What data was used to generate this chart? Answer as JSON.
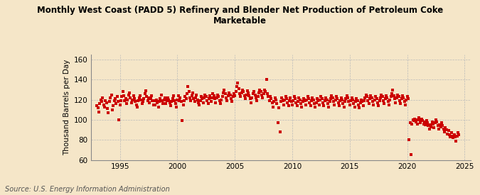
{
  "title": "Monthly West Coast (PADD 5) Refinery and Blender Net Production of Petroleum Coke\nMarketable",
  "ylabel": "Thousand Barrels per Day",
  "source": "Source: U.S. Energy Information Administration",
  "background_color": "#f5e6c8",
  "dot_color": "#cc0000",
  "xlim": [
    1992.5,
    2025.5
  ],
  "ylim": [
    60,
    165
  ],
  "yticks": [
    60,
    80,
    100,
    120,
    140,
    160
  ],
  "xticks": [
    1995,
    2000,
    2005,
    2010,
    2015,
    2020,
    2025
  ],
  "data": [
    [
      1993.0,
      114
    ],
    [
      1993.083,
      112
    ],
    [
      1993.167,
      108
    ],
    [
      1993.25,
      116
    ],
    [
      1993.333,
      120
    ],
    [
      1993.417,
      118
    ],
    [
      1993.5,
      122
    ],
    [
      1993.583,
      115
    ],
    [
      1993.667,
      113
    ],
    [
      1993.75,
      119
    ],
    [
      1993.833,
      117
    ],
    [
      1993.917,
      111
    ],
    [
      1994.0,
      107
    ],
    [
      1994.083,
      118
    ],
    [
      1994.167,
      122
    ],
    [
      1994.25,
      125
    ],
    [
      1994.333,
      110
    ],
    [
      1994.417,
      114
    ],
    [
      1994.5,
      119
    ],
    [
      1994.583,
      121
    ],
    [
      1994.667,
      116
    ],
    [
      1994.75,
      123
    ],
    [
      1994.833,
      118
    ],
    [
      1994.917,
      100
    ],
    [
      1995.0,
      115
    ],
    [
      1995.083,
      119
    ],
    [
      1995.167,
      123
    ],
    [
      1995.25,
      128
    ],
    [
      1995.333,
      124
    ],
    [
      1995.417,
      119
    ],
    [
      1995.5,
      121
    ],
    [
      1995.583,
      116
    ],
    [
      1995.667,
      120
    ],
    [
      1995.75,
      125
    ],
    [
      1995.833,
      127
    ],
    [
      1995.917,
      122
    ],
    [
      1996.0,
      117
    ],
    [
      1996.083,
      120
    ],
    [
      1996.167,
      124
    ],
    [
      1996.25,
      121
    ],
    [
      1996.333,
      118
    ],
    [
      1996.417,
      115
    ],
    [
      1996.5,
      113
    ],
    [
      1996.583,
      119
    ],
    [
      1996.667,
      122
    ],
    [
      1996.75,
      124
    ],
    [
      1996.833,
      120
    ],
    [
      1996.917,
      116
    ],
    [
      1997.0,
      118
    ],
    [
      1997.083,
      121
    ],
    [
      1997.167,
      126
    ],
    [
      1997.25,
      129
    ],
    [
      1997.333,
      123
    ],
    [
      1997.417,
      119
    ],
    [
      1997.5,
      122
    ],
    [
      1997.583,
      117
    ],
    [
      1997.667,
      121
    ],
    [
      1997.75,
      124
    ],
    [
      1997.833,
      119
    ],
    [
      1997.917,
      115
    ],
    [
      1998.0,
      119
    ],
    [
      1998.083,
      115
    ],
    [
      1998.167,
      120
    ],
    [
      1998.25,
      117
    ],
    [
      1998.333,
      113
    ],
    [
      1998.417,
      118
    ],
    [
      1998.5,
      121
    ],
    [
      1998.583,
      125
    ],
    [
      1998.667,
      119
    ],
    [
      1998.75,
      116
    ],
    [
      1998.833,
      120
    ],
    [
      1998.917,
      122
    ],
    [
      1999.0,
      116
    ],
    [
      1999.083,
      119
    ],
    [
      1999.167,
      122
    ],
    [
      1999.25,
      120
    ],
    [
      1999.333,
      117
    ],
    [
      1999.417,
      114
    ],
    [
      1999.5,
      118
    ],
    [
      1999.583,
      121
    ],
    [
      1999.667,
      124
    ],
    [
      1999.75,
      119
    ],
    [
      1999.833,
      116
    ],
    [
      1999.917,
      113
    ],
    [
      2000.0,
      120
    ],
    [
      2000.083,
      124
    ],
    [
      2000.167,
      119
    ],
    [
      2000.25,
      122
    ],
    [
      2000.333,
      118
    ],
    [
      2000.417,
      99
    ],
    [
      2000.5,
      115
    ],
    [
      2000.583,
      119
    ],
    [
      2000.667,
      123
    ],
    [
      2000.75,
      121
    ],
    [
      2000.833,
      126
    ],
    [
      2000.917,
      133
    ],
    [
      2001.0,
      128
    ],
    [
      2001.083,
      122
    ],
    [
      2001.167,
      119
    ],
    [
      2001.25,
      124
    ],
    [
      2001.333,
      127
    ],
    [
      2001.417,
      121
    ],
    [
      2001.5,
      118
    ],
    [
      2001.583,
      122
    ],
    [
      2001.667,
      125
    ],
    [
      2001.75,
      120
    ],
    [
      2001.833,
      117
    ],
    [
      2001.917,
      115
    ],
    [
      2002.0,
      119
    ],
    [
      2002.083,
      123
    ],
    [
      2002.167,
      121
    ],
    [
      2002.25,
      117
    ],
    [
      2002.333,
      122
    ],
    [
      2002.417,
      125
    ],
    [
      2002.5,
      123
    ],
    [
      2002.583,
      119
    ],
    [
      2002.667,
      116
    ],
    [
      2002.75,
      121
    ],
    [
      2002.833,
      124
    ],
    [
      2002.917,
      118
    ],
    [
      2003.0,
      122
    ],
    [
      2003.083,
      126
    ],
    [
      2003.167,
      124
    ],
    [
      2003.25,
      121
    ],
    [
      2003.333,
      117
    ],
    [
      2003.417,
      122
    ],
    [
      2003.5,
      125
    ],
    [
      2003.583,
      123
    ],
    [
      2003.667,
      119
    ],
    [
      2003.75,
      116
    ],
    [
      2003.833,
      120
    ],
    [
      2003.917,
      123
    ],
    [
      2004.0,
      127
    ],
    [
      2004.083,
      130
    ],
    [
      2004.167,
      126
    ],
    [
      2004.25,
      122
    ],
    [
      2004.333,
      119
    ],
    [
      2004.417,
      124
    ],
    [
      2004.5,
      127
    ],
    [
      2004.583,
      125
    ],
    [
      2004.667,
      121
    ],
    [
      2004.75,
      118
    ],
    [
      2004.833,
      123
    ],
    [
      2004.917,
      126
    ],
    [
      2005.0,
      124
    ],
    [
      2005.083,
      128
    ],
    [
      2005.167,
      133
    ],
    [
      2005.25,
      137
    ],
    [
      2005.333,
      131
    ],
    [
      2005.417,
      126
    ],
    [
      2005.5,
      123
    ],
    [
      2005.583,
      127
    ],
    [
      2005.667,
      130
    ],
    [
      2005.75,
      128
    ],
    [
      2005.833,
      124
    ],
    [
      2005.917,
      121
    ],
    [
      2006.0,
      125
    ],
    [
      2006.083,
      129
    ],
    [
      2006.167,
      127
    ],
    [
      2006.25,
      124
    ],
    [
      2006.333,
      121
    ],
    [
      2006.417,
      117
    ],
    [
      2006.5,
      122
    ],
    [
      2006.583,
      126
    ],
    [
      2006.667,
      128
    ],
    [
      2006.75,
      125
    ],
    [
      2006.833,
      122
    ],
    [
      2006.917,
      119
    ],
    [
      2007.0,
      123
    ],
    [
      2007.083,
      127
    ],
    [
      2007.167,
      130
    ],
    [
      2007.25,
      128
    ],
    [
      2007.333,
      125
    ],
    [
      2007.417,
      122
    ],
    [
      2007.5,
      126
    ],
    [
      2007.583,
      130
    ],
    [
      2007.667,
      128
    ],
    [
      2007.75,
      140
    ],
    [
      2007.833,
      126
    ],
    [
      2007.917,
      123
    ],
    [
      2008.0,
      119
    ],
    [
      2008.083,
      123
    ],
    [
      2008.167,
      121
    ],
    [
      2008.25,
      117
    ],
    [
      2008.333,
      113
    ],
    [
      2008.417,
      118
    ],
    [
      2008.5,
      122
    ],
    [
      2008.583,
      120
    ],
    [
      2008.667,
      116
    ],
    [
      2008.75,
      97
    ],
    [
      2008.833,
      112
    ],
    [
      2008.917,
      88
    ],
    [
      2009.0,
      118
    ],
    [
      2009.083,
      122
    ],
    [
      2009.167,
      119
    ],
    [
      2009.25,
      115
    ],
    [
      2009.333,
      120
    ],
    [
      2009.417,
      123
    ],
    [
      2009.5,
      121
    ],
    [
      2009.583,
      117
    ],
    [
      2009.667,
      114
    ],
    [
      2009.75,
      119
    ],
    [
      2009.833,
      122
    ],
    [
      2009.917,
      118
    ],
    [
      2010.0,
      115
    ],
    [
      2010.083,
      119
    ],
    [
      2010.167,
      123
    ],
    [
      2010.25,
      121
    ],
    [
      2010.333,
      117
    ],
    [
      2010.417,
      114
    ],
    [
      2010.5,
      118
    ],
    [
      2010.583,
      122
    ],
    [
      2010.667,
      120
    ],
    [
      2010.75,
      116
    ],
    [
      2010.833,
      113
    ],
    [
      2010.917,
      118
    ],
    [
      2011.0,
      121
    ],
    [
      2011.083,
      119
    ],
    [
      2011.167,
      115
    ],
    [
      2011.25,
      120
    ],
    [
      2011.333,
      123
    ],
    [
      2011.417,
      121
    ],
    [
      2011.5,
      117
    ],
    [
      2011.583,
      114
    ],
    [
      2011.667,
      119
    ],
    [
      2011.75,
      122
    ],
    [
      2011.833,
      120
    ],
    [
      2011.917,
      116
    ],
    [
      2012.0,
      113
    ],
    [
      2012.083,
      117
    ],
    [
      2012.167,
      121
    ],
    [
      2012.25,
      119
    ],
    [
      2012.333,
      115
    ],
    [
      2012.417,
      120
    ],
    [
      2012.5,
      123
    ],
    [
      2012.583,
      121
    ],
    [
      2012.667,
      117
    ],
    [
      2012.75,
      114
    ],
    [
      2012.833,
      119
    ],
    [
      2012.917,
      122
    ],
    [
      2013.0,
      120
    ],
    [
      2013.083,
      116
    ],
    [
      2013.167,
      113
    ],
    [
      2013.25,
      118
    ],
    [
      2013.333,
      121
    ],
    [
      2013.417,
      124
    ],
    [
      2013.5,
      122
    ],
    [
      2013.583,
      118
    ],
    [
      2013.667,
      115
    ],
    [
      2013.75,
      120
    ],
    [
      2013.833,
      123
    ],
    [
      2013.917,
      121
    ],
    [
      2014.0,
      117
    ],
    [
      2014.083,
      114
    ],
    [
      2014.167,
      119
    ],
    [
      2014.25,
      122
    ],
    [
      2014.333,
      120
    ],
    [
      2014.417,
      116
    ],
    [
      2014.5,
      113
    ],
    [
      2014.583,
      118
    ],
    [
      2014.667,
      121
    ],
    [
      2014.75,
      124
    ],
    [
      2014.833,
      122
    ],
    [
      2014.917,
      118
    ],
    [
      2015.0,
      115
    ],
    [
      2015.083,
      119
    ],
    [
      2015.167,
      122
    ],
    [
      2015.25,
      120
    ],
    [
      2015.333,
      116
    ],
    [
      2015.417,
      113
    ],
    [
      2015.5,
      118
    ],
    [
      2015.583,
      121
    ],
    [
      2015.667,
      119
    ],
    [
      2015.75,
      115
    ],
    [
      2015.833,
      112
    ],
    [
      2015.917,
      117
    ],
    [
      2016.0,
      120
    ],
    [
      2016.083,
      118
    ],
    [
      2016.167,
      114
    ],
    [
      2016.25,
      119
    ],
    [
      2016.333,
      122
    ],
    [
      2016.417,
      125
    ],
    [
      2016.5,
      123
    ],
    [
      2016.583,
      119
    ],
    [
      2016.667,
      116
    ],
    [
      2016.75,
      121
    ],
    [
      2016.833,
      124
    ],
    [
      2016.917,
      122
    ],
    [
      2017.0,
      118
    ],
    [
      2017.083,
      115
    ],
    [
      2017.167,
      120
    ],
    [
      2017.25,
      123
    ],
    [
      2017.333,
      121
    ],
    [
      2017.417,
      117
    ],
    [
      2017.5,
      114
    ],
    [
      2017.583,
      119
    ],
    [
      2017.667,
      122
    ],
    [
      2017.75,
      125
    ],
    [
      2017.833,
      123
    ],
    [
      2017.917,
      119
    ],
    [
      2018.0,
      116
    ],
    [
      2018.083,
      121
    ],
    [
      2018.167,
      124
    ],
    [
      2018.25,
      122
    ],
    [
      2018.333,
      118
    ],
    [
      2018.417,
      115
    ],
    [
      2018.5,
      120
    ],
    [
      2018.583,
      123
    ],
    [
      2018.667,
      126
    ],
    [
      2018.75,
      130
    ],
    [
      2018.833,
      124
    ],
    [
      2018.917,
      121
    ],
    [
      2019.0,
      117
    ],
    [
      2019.083,
      122
    ],
    [
      2019.167,
      125
    ],
    [
      2019.25,
      123
    ],
    [
      2019.333,
      119
    ],
    [
      2019.417,
      116
    ],
    [
      2019.5,
      121
    ],
    [
      2019.583,
      124
    ],
    [
      2019.667,
      122
    ],
    [
      2019.75,
      118
    ],
    [
      2019.833,
      115
    ],
    [
      2019.917,
      120
    ],
    [
      2020.0,
      123
    ],
    [
      2020.083,
      121
    ],
    [
      2020.167,
      80
    ],
    [
      2020.25,
      97
    ],
    [
      2020.333,
      65
    ],
    [
      2020.417,
      96
    ],
    [
      2020.5,
      100
    ],
    [
      2020.583,
      99
    ],
    [
      2020.667,
      101
    ],
    [
      2020.75,
      98
    ],
    [
      2020.833,
      100
    ],
    [
      2020.917,
      96
    ],
    [
      2021.0,
      102
    ],
    [
      2021.083,
      100
    ],
    [
      2021.167,
      97
    ],
    [
      2021.25,
      101
    ],
    [
      2021.333,
      99
    ],
    [
      2021.417,
      96
    ],
    [
      2021.5,
      98
    ],
    [
      2021.583,
      95
    ],
    [
      2021.667,
      99
    ],
    [
      2021.75,
      97
    ],
    [
      2021.833,
      94
    ],
    [
      2021.917,
      91
    ],
    [
      2022.0,
      95
    ],
    [
      2022.083,
      93
    ],
    [
      2022.167,
      98
    ],
    [
      2022.25,
      96
    ],
    [
      2022.333,
      92
    ],
    [
      2022.417,
      97
    ],
    [
      2022.5,
      100
    ],
    [
      2022.583,
      98
    ],
    [
      2022.667,
      94
    ],
    [
      2022.75,
      91
    ],
    [
      2022.833,
      95
    ],
    [
      2022.917,
      93
    ],
    [
      2023.0,
      97
    ],
    [
      2023.083,
      94
    ],
    [
      2023.167,
      91
    ],
    [
      2023.25,
      88
    ],
    [
      2023.333,
      92
    ],
    [
      2023.417,
      90
    ],
    [
      2023.5,
      86
    ],
    [
      2023.583,
      89
    ],
    [
      2023.667,
      85
    ],
    [
      2023.75,
      83
    ],
    [
      2023.833,
      87
    ],
    [
      2023.917,
      84
    ],
    [
      2024.0,
      82
    ],
    [
      2024.083,
      85
    ],
    [
      2024.167,
      83
    ],
    [
      2024.25,
      79
    ],
    [
      2024.333,
      84
    ],
    [
      2024.417,
      87
    ],
    [
      2024.5,
      85
    ]
  ]
}
